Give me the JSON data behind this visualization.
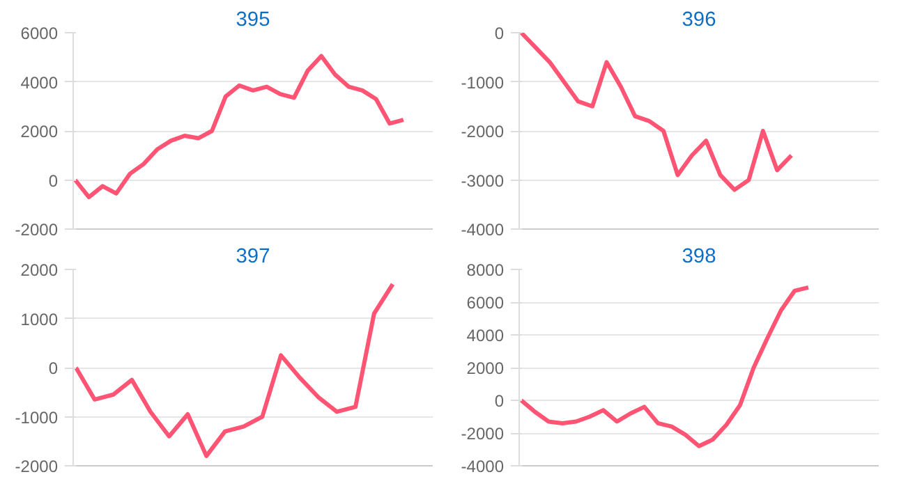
{
  "chart_data": [
    {
      "type": "line",
      "title": "395",
      "categories": [
        null,
        null,
        null,
        null,
        null,
        null,
        null,
        null,
        null,
        null,
        null,
        null,
        null,
        null,
        null,
        null,
        null,
        null,
        null,
        null,
        null,
        null,
        null,
        null,
        null,
        null,
        null
      ],
      "series": [
        {
          "color": "#ff5473",
          "values": [
            0,
            -700,
            -250,
            -550,
            250,
            650,
            1250,
            1600,
            1800,
            1700,
            2000,
            3400,
            3850,
            3650,
            3800,
            3500,
            3350,
            4450,
            5050,
            4300,
            3800,
            3650,
            3300,
            2300,
            2450,
            null,
            null
          ]
        }
      ],
      "ylim": [
        -2000,
        6000
      ],
      "yticks": [
        -2000,
        0,
        2000,
        4000,
        6000
      ],
      "grid": "y",
      "tick_labels": "y",
      "marker": "none",
      "line_style": "solid"
    },
    {
      "type": "line",
      "title": "396",
      "categories": [
        null,
        null,
        null,
        null,
        null,
        null,
        null,
        null,
        null,
        null,
        null,
        null,
        null,
        null,
        null,
        null,
        null,
        null,
        null,
        null,
        null,
        null,
        null,
        null,
        null,
        null
      ],
      "series": [
        {
          "color": "#ff5473",
          "values": [
            0,
            -300,
            -600,
            -1000,
            -1400,
            -1500,
            -600,
            -1100,
            -1700,
            -1800,
            -2000,
            -2900,
            -2500,
            -2200,
            -2900,
            -3200,
            -3000,
            -2000,
            -2800,
            -2500,
            null,
            null,
            null,
            null,
            null,
            null
          ]
        }
      ],
      "ylim": [
        -4000,
        0
      ],
      "yticks": [
        -4000,
        -3000,
        -2000,
        -1000,
        0
      ],
      "grid": "y",
      "tick_labels": "y",
      "marker": "none",
      "line_style": "solid"
    },
    {
      "type": "line",
      "title": "397",
      "categories": [
        null,
        null,
        null,
        null,
        null,
        null,
        null,
        null,
        null,
        null,
        null,
        null,
        null,
        null,
        null,
        null,
        null,
        null,
        null,
        null
      ],
      "series": [
        {
          "color": "#ff5473",
          "values": [
            0,
            -650,
            -550,
            -250,
            -900,
            -1400,
            -950,
            -1800,
            -1300,
            -1200,
            -1000,
            250,
            -200,
            -600,
            -900,
            -800,
            1100,
            1700,
            null,
            null
          ]
        }
      ],
      "ylim": [
        -2000,
        2000
      ],
      "yticks": [
        -2000,
        -1000,
        0,
        1000,
        2000
      ],
      "grid": "y",
      "tick_labels": "y",
      "marker": "none",
      "line_style": "solid"
    },
    {
      "type": "line",
      "title": "398",
      "categories": [
        null,
        null,
        null,
        null,
        null,
        null,
        null,
        null,
        null,
        null,
        null,
        null,
        null,
        null,
        null,
        null,
        null,
        null,
        null,
        null,
        null,
        null,
        null,
        null,
        null,
        null,
        null
      ],
      "series": [
        {
          "color": "#ff5473",
          "values": [
            0,
            -700,
            -1300,
            -1400,
            -1300,
            -1000,
            -600,
            -1300,
            -800,
            -400,
            -1400,
            -1600,
            -2100,
            -2800,
            -2400,
            -1500,
            -300,
            2000,
            3800,
            5500,
            6700,
            6900,
            null,
            null,
            null,
            null,
            null
          ]
        }
      ],
      "ylim": [
        -4000,
        8000
      ],
      "yticks": [
        -4000,
        -2000,
        0,
        2000,
        4000,
        6000,
        8000
      ],
      "grid": "y",
      "tick_labels": "y",
      "marker": "none",
      "line_style": "solid"
    }
  ]
}
